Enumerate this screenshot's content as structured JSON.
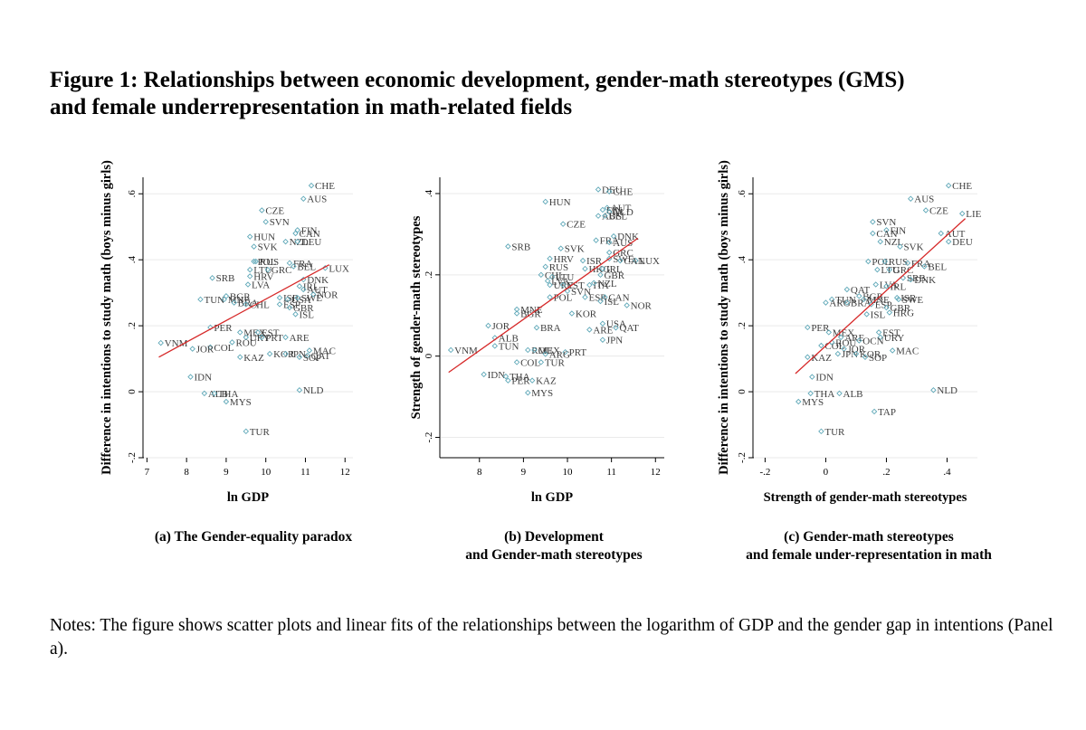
{
  "title": {
    "line1": "Figure 1: Relationships between economic development, gender-math stereotypes (GMS)",
    "line2": "and female underrepresentation in math-related fields"
  },
  "captions": {
    "a": [
      "(a) The Gender-equality paradox"
    ],
    "b": [
      "(b) Development",
      "and Gender-math stereotypes"
    ],
    "c": [
      "(c) Gender-math stereotypes",
      "and female under-representation in math"
    ]
  },
  "notes": "Notes: The figure shows scatter plots and linear fits of the relationships between the logarithm of GDP and the gender gap in intentions (Panel a).",
  "colors": {
    "marker": "#5fa8b8",
    "fit": "#d62828",
    "label": "#404040",
    "axis": "#000000"
  },
  "chart_data": [
    {
      "id": "a",
      "type": "scatter",
      "xlabel": "ln GDP",
      "ylabel": "Difference in intentions to study math (boys minus girls)",
      "xlim": [
        6.9,
        12.2
      ],
      "ylim": [
        -0.2,
        0.65
      ],
      "xticks": [
        7,
        8,
        9,
        10,
        11,
        12
      ],
      "xtick_labels": [
        "7",
        "8",
        "9",
        "10",
        "11",
        "12"
      ],
      "yticks": [
        -0.2,
        0,
        0.2,
        0.4,
        0.6
      ],
      "ytick_labels": [
        "-.2",
        "0",
        ".2",
        ".4",
        ".6"
      ],
      "fit": [
        [
          7.3,
          0.105
        ],
        [
          11.6,
          0.385
        ]
      ],
      "points": [
        {
          "label": "CHE",
          "x": 11.15,
          "y": 0.625
        },
        {
          "label": "AUS",
          "x": 10.95,
          "y": 0.585
        },
        {
          "label": "CZE",
          "x": 9.9,
          "y": 0.55
        },
        {
          "label": "SVN",
          "x": 10.0,
          "y": 0.515
        },
        {
          "label": "FIN",
          "x": 10.8,
          "y": 0.49
        },
        {
          "label": "CAN",
          "x": 10.75,
          "y": 0.48
        },
        {
          "label": "HUN",
          "x": 9.6,
          "y": 0.47
        },
        {
          "label": "NZL",
          "x": 10.5,
          "y": 0.455
        },
        {
          "label": "DEU",
          "x": 10.8,
          "y": 0.455
        },
        {
          "label": "SVK",
          "x": 9.7,
          "y": 0.44
        },
        {
          "label": "POL",
          "x": 9.7,
          "y": 0.395
        },
        {
          "label": "RUS",
          "x": 9.75,
          "y": 0.395
        },
        {
          "label": "FRA",
          "x": 10.6,
          "y": 0.39
        },
        {
          "label": "BEL",
          "x": 10.7,
          "y": 0.38
        },
        {
          "label": "LUX",
          "x": 11.5,
          "y": 0.375
        },
        {
          "label": "LTU",
          "x": 9.6,
          "y": 0.37
        },
        {
          "label": "GRC",
          "x": 10.05,
          "y": 0.37
        },
        {
          "label": "SRB",
          "x": 8.65,
          "y": 0.345
        },
        {
          "label": "HRV",
          "x": 9.6,
          "y": 0.35
        },
        {
          "label": "DNK",
          "x": 10.95,
          "y": 0.34
        },
        {
          "label": "IRL",
          "x": 10.85,
          "y": 0.32
        },
        {
          "label": "LVA",
          "x": 9.55,
          "y": 0.325
        },
        {
          "label": "AUT",
          "x": 10.95,
          "y": 0.31
        },
        {
          "label": "NOR",
          "x": 11.2,
          "y": 0.295
        },
        {
          "label": "BGR",
          "x": 9.0,
          "y": 0.29
        },
        {
          "label": "TUN",
          "x": 8.35,
          "y": 0.28
        },
        {
          "label": "MNE",
          "x": 8.95,
          "y": 0.28
        },
        {
          "label": "ISR",
          "x": 10.35,
          "y": 0.285
        },
        {
          "label": "USA",
          "x": 10.55,
          "y": 0.28
        },
        {
          "label": "SWE",
          "x": 10.8,
          "y": 0.285
        },
        {
          "label": "BRA",
          "x": 9.2,
          "y": 0.27
        },
        {
          "label": "CHL",
          "x": 9.5,
          "y": 0.265
        },
        {
          "label": "ESP",
          "x": 10.35,
          "y": 0.265
        },
        {
          "label": "GBR",
          "x": 10.6,
          "y": 0.255
        },
        {
          "label": "ISL",
          "x": 10.75,
          "y": 0.235
        },
        {
          "label": "PER",
          "x": 8.6,
          "y": 0.195
        },
        {
          "label": "MEX",
          "x": 9.35,
          "y": 0.18
        },
        {
          "label": "EST",
          "x": 9.8,
          "y": 0.18
        },
        {
          "label": "URY",
          "x": 9.5,
          "y": 0.165
        },
        {
          "label": "PRT",
          "x": 9.9,
          "y": 0.165
        },
        {
          "label": "ARE",
          "x": 10.5,
          "y": 0.165
        },
        {
          "label": "ROU",
          "x": 9.15,
          "y": 0.15
        },
        {
          "label": "COL",
          "x": 8.6,
          "y": 0.135
        },
        {
          "label": "JOR",
          "x": 8.15,
          "y": 0.13
        },
        {
          "label": "VNM",
          "x": 7.35,
          "y": 0.148
        },
        {
          "label": "MAC",
          "x": 11.1,
          "y": 0.125
        },
        {
          "label": "KAZ",
          "x": 9.35,
          "y": 0.105
        },
        {
          "label": "KOR",
          "x": 10.1,
          "y": 0.115
        },
        {
          "label": "JPN",
          "x": 10.5,
          "y": 0.115
        },
        {
          "label": "QAT",
          "x": 11.05,
          "y": 0.11
        },
        {
          "label": "SOP",
          "x": 10.85,
          "y": 0.105
        },
        {
          "label": "IDN",
          "x": 8.1,
          "y": 0.045
        },
        {
          "label": "NLD",
          "x": 10.85,
          "y": 0.005
        },
        {
          "label": "ALB",
          "x": 8.45,
          "y": -0.005
        },
        {
          "label": "THA",
          "x": 8.7,
          "y": -0.005
        },
        {
          "label": "MYS",
          "x": 9.0,
          "y": -0.03
        },
        {
          "label": "TUR",
          "x": 9.5,
          "y": -0.12
        }
      ]
    },
    {
      "id": "b",
      "type": "scatter",
      "xlabel": "ln GDP",
      "ylabel": "Strength of gender-math stereotypes",
      "xlim": [
        7.1,
        12.2
      ],
      "ylim": [
        -0.25,
        0.44
      ],
      "xticks": [
        8,
        9,
        10,
        11,
        12
      ],
      "xtick_labels": [
        "8",
        "9",
        "10",
        "11",
        "12"
      ],
      "yticks": [
        -0.2,
        0,
        0.2,
        0.4
      ],
      "ytick_labels": [
        "-.2",
        "0",
        ".2",
        ".4"
      ],
      "fit": [
        [
          7.3,
          -0.04
        ],
        [
          11.6,
          0.29
        ]
      ],
      "points": [
        {
          "label": "DEU",
          "x": 10.7,
          "y": 0.41
        },
        {
          "label": "CHE",
          "x": 10.95,
          "y": 0.405
        },
        {
          "label": "HUN",
          "x": 9.5,
          "y": 0.38
        },
        {
          "label": "AUT",
          "x": 10.9,
          "y": 0.365
        },
        {
          "label": "FIN",
          "x": 10.8,
          "y": 0.36
        },
        {
          "label": "NLD",
          "x": 10.95,
          "y": 0.355
        },
        {
          "label": "AUS",
          "x": 10.7,
          "y": 0.345
        },
        {
          "label": "BEL",
          "x": 10.85,
          "y": 0.345
        },
        {
          "label": "CZE",
          "x": 9.9,
          "y": 0.325
        },
        {
          "label": "DNK",
          "x": 11.05,
          "y": 0.295
        },
        {
          "label": "FRA",
          "x": 10.65,
          "y": 0.285
        },
        {
          "label": "AUS",
          "x": 10.95,
          "y": 0.28
        },
        {
          "label": "SRB",
          "x": 8.65,
          "y": 0.27
        },
        {
          "label": "SVK",
          "x": 9.85,
          "y": 0.265
        },
        {
          "label": "GRC",
          "x": 10.95,
          "y": 0.255
        },
        {
          "label": "SWE",
          "x": 10.95,
          "y": 0.24
        },
        {
          "label": "ISR",
          "x": 10.35,
          "y": 0.235
        },
        {
          "label": "HRV",
          "x": 9.6,
          "y": 0.24
        },
        {
          "label": "LUX",
          "x": 11.55,
          "y": 0.235
        },
        {
          "label": "CAN",
          "x": 11.2,
          "y": 0.235
        },
        {
          "label": "RUS",
          "x": 9.5,
          "y": 0.22
        },
        {
          "label": "HKG",
          "x": 10.4,
          "y": 0.215
        },
        {
          "label": "IRL",
          "x": 10.8,
          "y": 0.215
        },
        {
          "label": "CHL",
          "x": 9.4,
          "y": 0.2
        },
        {
          "label": "LTU",
          "x": 9.65,
          "y": 0.195
        },
        {
          "label": "GBR",
          "x": 10.75,
          "y": 0.2
        },
        {
          "label": "LVA",
          "x": 9.55,
          "y": 0.185
        },
        {
          "label": "URY",
          "x": 9.6,
          "y": 0.175
        },
        {
          "label": "EST",
          "x": 9.9,
          "y": 0.175
        },
        {
          "label": "ITA",
          "x": 10.5,
          "y": 0.175
        },
        {
          "label": "NZL",
          "x": 10.6,
          "y": 0.18
        },
        {
          "label": "SVN",
          "x": 10.0,
          "y": 0.16
        },
        {
          "label": "ESP",
          "x": 10.4,
          "y": 0.145
        },
        {
          "label": "CAN",
          "x": 10.85,
          "y": 0.145
        },
        {
          "label": "POL",
          "x": 9.6,
          "y": 0.145
        },
        {
          "label": "ISL",
          "x": 10.75,
          "y": 0.135
        },
        {
          "label": "NOR",
          "x": 11.35,
          "y": 0.125
        },
        {
          "label": "MNE",
          "x": 8.85,
          "y": 0.115
        },
        {
          "label": "BGR",
          "x": 8.85,
          "y": 0.105
        },
        {
          "label": "KOR",
          "x": 10.1,
          "y": 0.105
        },
        {
          "label": "USA",
          "x": 10.8,
          "y": 0.08
        },
        {
          "label": "JOR",
          "x": 8.2,
          "y": 0.075
        },
        {
          "label": "BRA",
          "x": 9.3,
          "y": 0.07
        },
        {
          "label": "ARE",
          "x": 10.5,
          "y": 0.065
        },
        {
          "label": "QAT",
          "x": 11.1,
          "y": 0.07
        },
        {
          "label": "ALB",
          "x": 8.35,
          "y": 0.045
        },
        {
          "label": "JPN",
          "x": 10.8,
          "y": 0.04
        },
        {
          "label": "TUN",
          "x": 8.35,
          "y": 0.025
        },
        {
          "label": "ROU",
          "x": 9.1,
          "y": 0.015
        },
        {
          "label": "MEX",
          "x": 9.25,
          "y": 0.015
        },
        {
          "label": "PRT",
          "x": 9.95,
          "y": 0.01
        },
        {
          "label": "ARG",
          "x": 9.5,
          "y": 0.005
        },
        {
          "label": "VNM",
          "x": 7.35,
          "y": 0.015
        },
        {
          "label": "COL",
          "x": 8.85,
          "y": -0.015
        },
        {
          "label": "TUR",
          "x": 9.4,
          "y": -0.015
        },
        {
          "label": "IDN",
          "x": 8.1,
          "y": -0.045
        },
        {
          "label": "THA",
          "x": 8.6,
          "y": -0.05
        },
        {
          "label": "PER",
          "x": 8.65,
          "y": -0.06
        },
        {
          "label": "KAZ",
          "x": 9.2,
          "y": -0.06
        },
        {
          "label": "MYS",
          "x": 9.1,
          "y": -0.09
        }
      ]
    },
    {
      "id": "c",
      "type": "scatter",
      "xlabel": "Strength of gender-math stereotypes",
      "ylabel": "Difference in intentions to study math (boys minus girls)",
      "xlim": [
        -0.24,
        0.5
      ],
      "ylim": [
        -0.2,
        0.65
      ],
      "xticks": [
        -0.2,
        0,
        0.2,
        0.4
      ],
      "xtick_labels": [
        "-.2",
        "0",
        ".2",
        ".4"
      ],
      "yticks": [
        -0.2,
        0,
        0.2,
        0.4,
        0.6
      ],
      "ytick_labels": [
        "-.2",
        "0",
        ".2",
        ".4",
        ".6"
      ],
      "fit": [
        [
          -0.1,
          0.055
        ],
        [
          0.46,
          0.525
        ]
      ],
      "points": [
        {
          "label": "CHE",
          "x": 0.405,
          "y": 0.625
        },
        {
          "label": "AUS",
          "x": 0.28,
          "y": 0.585
        },
        {
          "label": "CZE",
          "x": 0.33,
          "y": 0.55
        },
        {
          "label": "LIE",
          "x": 0.45,
          "y": 0.54
        },
        {
          "label": "SVN",
          "x": 0.155,
          "y": 0.515
        },
        {
          "label": "FIN",
          "x": 0.2,
          "y": 0.49
        },
        {
          "label": "CAN",
          "x": 0.155,
          "y": 0.48
        },
        {
          "label": "AUT",
          "x": 0.38,
          "y": 0.48
        },
        {
          "label": "NZL",
          "x": 0.18,
          "y": 0.455
        },
        {
          "label": "DEU",
          "x": 0.405,
          "y": 0.455
        },
        {
          "label": "SVK",
          "x": 0.245,
          "y": 0.44
        },
        {
          "label": "POL",
          "x": 0.14,
          "y": 0.395
        },
        {
          "label": "RUS",
          "x": 0.195,
          "y": 0.395
        },
        {
          "label": "FRA",
          "x": 0.27,
          "y": 0.39
        },
        {
          "label": "BEL",
          "x": 0.325,
          "y": 0.38
        },
        {
          "label": "LTU",
          "x": 0.17,
          "y": 0.37
        },
        {
          "label": "GRC",
          "x": 0.21,
          "y": 0.37
        },
        {
          "label": "SRB",
          "x": 0.255,
          "y": 0.345
        },
        {
          "label": "DNK",
          "x": 0.28,
          "y": 0.34
        },
        {
          "label": "LVA",
          "x": 0.165,
          "y": 0.325
        },
        {
          "label": "IRL",
          "x": 0.2,
          "y": 0.32
        },
        {
          "label": "QAT",
          "x": 0.07,
          "y": 0.31
        },
        {
          "label": "BGR",
          "x": 0.11,
          "y": 0.29
        },
        {
          "label": "MNE",
          "x": 0.125,
          "y": 0.28
        },
        {
          "label": "ISR",
          "x": 0.235,
          "y": 0.285
        },
        {
          "label": "SWE",
          "x": 0.24,
          "y": 0.28
        },
        {
          "label": "TUN",
          "x": 0.02,
          "y": 0.28
        },
        {
          "label": "ARG",
          "x": 0.0,
          "y": 0.27
        },
        {
          "label": "BRA",
          "x": 0.07,
          "y": 0.27
        },
        {
          "label": "ESP",
          "x": 0.15,
          "y": 0.265
        },
        {
          "label": "GBR",
          "x": 0.2,
          "y": 0.255
        },
        {
          "label": "HRG",
          "x": 0.21,
          "y": 0.24
        },
        {
          "label": "ISL",
          "x": 0.135,
          "y": 0.235
        },
        {
          "label": "PER",
          "x": -0.06,
          "y": 0.195
        },
        {
          "label": "EST",
          "x": 0.175,
          "y": 0.18
        },
        {
          "label": "MEX",
          "x": 0.01,
          "y": 0.18
        },
        {
          "label": "URY",
          "x": 0.18,
          "y": 0.165
        },
        {
          "label": "ARE",
          "x": 0.05,
          "y": 0.165
        },
        {
          "label": "OCN",
          "x": 0.11,
          "y": 0.155
        },
        {
          "label": "COL",
          "x": -0.015,
          "y": 0.14
        },
        {
          "label": "MAC",
          "x": 0.22,
          "y": 0.125
        },
        {
          "label": "ROU",
          "x": 0.02,
          "y": 0.15
        },
        {
          "label": "JOR",
          "x": 0.06,
          "y": 0.13
        },
        {
          "label": "JPN",
          "x": 0.04,
          "y": 0.115
        },
        {
          "label": "KOR",
          "x": 0.1,
          "y": 0.115
        },
        {
          "label": "SOP",
          "x": 0.13,
          "y": 0.105
        },
        {
          "label": "KAZ",
          "x": -0.06,
          "y": 0.105
        },
        {
          "label": "IDN",
          "x": -0.045,
          "y": 0.045
        },
        {
          "label": "NLD",
          "x": 0.355,
          "y": 0.005
        },
        {
          "label": "THA",
          "x": -0.05,
          "y": -0.005
        },
        {
          "label": "ALB",
          "x": 0.045,
          "y": -0.005
        },
        {
          "label": "MYS",
          "x": -0.09,
          "y": -0.03
        },
        {
          "label": "TAP",
          "x": 0.16,
          "y": -0.06
        },
        {
          "label": "TUR",
          "x": -0.015,
          "y": -0.12
        }
      ]
    }
  ]
}
